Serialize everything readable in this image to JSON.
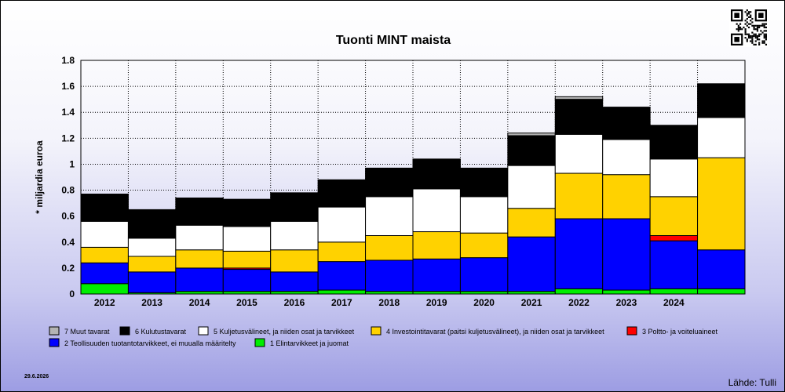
{
  "chart_data": {
    "type": "bar",
    "stacked": true,
    "title": "Tuonti MINT maista",
    "ylabel": "* miljardia euroa",
    "xlabel": "",
    "ylim": [
      0,
      1.8
    ],
    "yticks": [
      "0",
      "0.2",
      "0.4",
      "0.6",
      "0.8",
      "1",
      "1.2",
      "1.4",
      "1.6",
      "1.8"
    ],
    "categories": [
      "2012",
      "2013",
      "2014",
      "2015",
      "2016",
      "2017",
      "2018",
      "2019",
      "2020",
      "2021",
      "2022",
      "2023",
      "2024",
      ""
    ],
    "grid": true,
    "series": [
      {
        "name": "1 Elintarvikkeet ja juomat",
        "color": "#00ee00",
        "values": [
          0.08,
          0.01,
          0.02,
          0.02,
          0.02,
          0.03,
          0.02,
          0.02,
          0.02,
          0.02,
          0.04,
          0.03,
          0.04,
          0.04
        ]
      },
      {
        "name": "2 Teollisuuden tuotantotarvikkeet, ei muualla määritelty",
        "color": "#0000ff",
        "values": [
          0.16,
          0.16,
          0.18,
          0.17,
          0.15,
          0.22,
          0.24,
          0.25,
          0.26,
          0.42,
          0.54,
          0.55,
          0.37,
          0.3
        ]
      },
      {
        "name": "3 Poltto- ja voiteluaineet",
        "color": "#ff0000",
        "values": [
          0,
          0,
          0,
          0.01,
          0,
          0,
          0,
          0,
          0,
          0,
          0,
          0,
          0.04,
          0
        ]
      },
      {
        "name": "4 Investointitavarat (paitsi kuljetusvälineet), ja niiden osat ja tarvikkeet",
        "color": "#ffd200",
        "values": [
          0.12,
          0.12,
          0.14,
          0.13,
          0.17,
          0.15,
          0.19,
          0.21,
          0.19,
          0.22,
          0.35,
          0.34,
          0.3,
          0.71
        ]
      },
      {
        "name": "5 Kuljetusvälineet, ja niiden osat ja tarvikkeet",
        "color": "#ffffff",
        "values": [
          0.2,
          0.14,
          0.19,
          0.19,
          0.22,
          0.27,
          0.3,
          0.33,
          0.28,
          0.33,
          0.3,
          0.27,
          0.29,
          0.31
        ]
      },
      {
        "name": "6 Kulutustavarat",
        "color": "#000000",
        "values": [
          0.21,
          0.22,
          0.21,
          0.21,
          0.22,
          0.21,
          0.22,
          0.23,
          0.22,
          0.23,
          0.27,
          0.25,
          0.26,
          0.26
        ]
      },
      {
        "name": "7 Muut tavarat",
        "color": "#b4b4b4",
        "values": [
          0,
          0,
          0,
          0,
          0,
          0,
          0,
          0,
          0,
          0.02,
          0.02,
          0,
          0,
          0
        ]
      }
    ],
    "legend_placement": "bottom",
    "legend_order": [
      6,
      5,
      4,
      3,
      2,
      1,
      0
    ]
  },
  "footer": {
    "date": "29.6.2026",
    "source": "Lähde: Tulli"
  },
  "icons": {
    "qr": "qr-code-icon"
  }
}
